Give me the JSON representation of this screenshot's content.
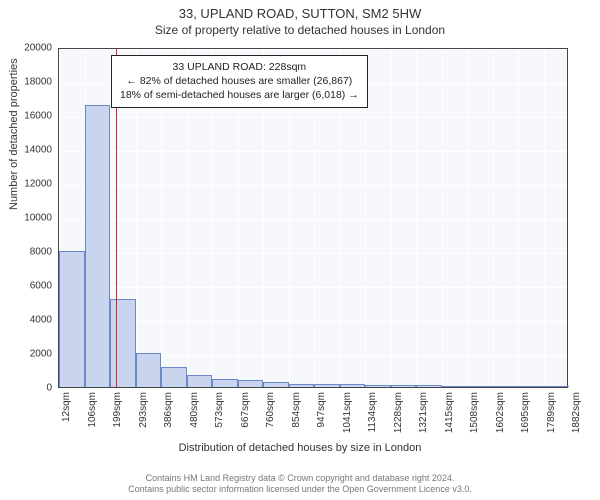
{
  "title_main": "33, UPLAND ROAD, SUTTON, SM2 5HW",
  "title_sub": "Size of property relative to detached houses in London",
  "ylabel": "Number of detached properties",
  "xlabel": "Distribution of detached houses by size in London",
  "chart": {
    "type": "histogram",
    "plot_bg": "#f6f8fc",
    "grid_color": "#ffffff",
    "border_color": "#444444",
    "bar_fill": "#c9d5ee",
    "bar_stroke": "#6b89c9",
    "marker_color": "#d22",
    "ylim": [
      0,
      20000
    ],
    "ytick_step": 2000,
    "yticks": [
      0,
      2000,
      4000,
      6000,
      8000,
      10000,
      12000,
      14000,
      16000,
      18000,
      20000
    ],
    "xtick_labels": [
      "12sqm",
      "106sqm",
      "199sqm",
      "293sqm",
      "386sqm",
      "480sqm",
      "573sqm",
      "667sqm",
      "760sqm",
      "854sqm",
      "947sqm",
      "1041sqm",
      "1134sqm",
      "1228sqm",
      "1321sqm",
      "1415sqm",
      "1508sqm",
      "1602sqm",
      "1695sqm",
      "1789sqm",
      "1882sqm"
    ],
    "bars": [
      8000,
      16600,
      5200,
      2000,
      1200,
      700,
      500,
      400,
      300,
      200,
      180,
      150,
      120,
      100,
      90,
      80,
      70,
      60,
      50,
      40
    ],
    "marker_value": 228,
    "x_min": 12,
    "x_max": 1929,
    "annot": {
      "line1": "33 UPLAND ROAD: 228sqm",
      "line2": "← 82% of detached houses are smaller (26,867)",
      "line3": "18% of semi-detached houses are larger (6,018) →"
    }
  },
  "footer": {
    "line1": "Contains HM Land Registry data © Crown copyright and database right 2024.",
    "line2": "Contains public sector information licensed under the Open Government Licence v3.0."
  },
  "fontsize": {
    "title": 13,
    "subtitle": 12,
    "label": 11,
    "tick": 10,
    "annot": 10.5,
    "footer": 9
  }
}
